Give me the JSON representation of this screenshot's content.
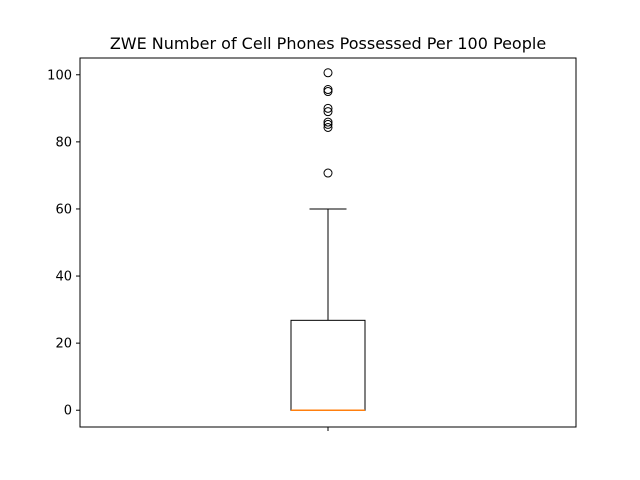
{
  "chart_data": {
    "type": "box",
    "title": "ZWE Number of Cell Phones Possessed Per 100 People",
    "xlabel": "",
    "ylabel": "",
    "ylim": [
      -5,
      105
    ],
    "yticks": [
      0,
      20,
      40,
      60,
      80,
      100
    ],
    "xticks": [
      ""
    ],
    "grid": false,
    "box": {
      "whisker_low": 0,
      "q1": 0,
      "median": 0,
      "q3": 26.8,
      "whisker_high": 60,
      "outliers": [
        70.7,
        84.3,
        85.2,
        85.9,
        89.0,
        90.0,
        95.0,
        95.6,
        100.6
      ]
    },
    "colors": {
      "box": "#000000",
      "median": "#ff7f0e",
      "background": "#ffffff"
    }
  }
}
